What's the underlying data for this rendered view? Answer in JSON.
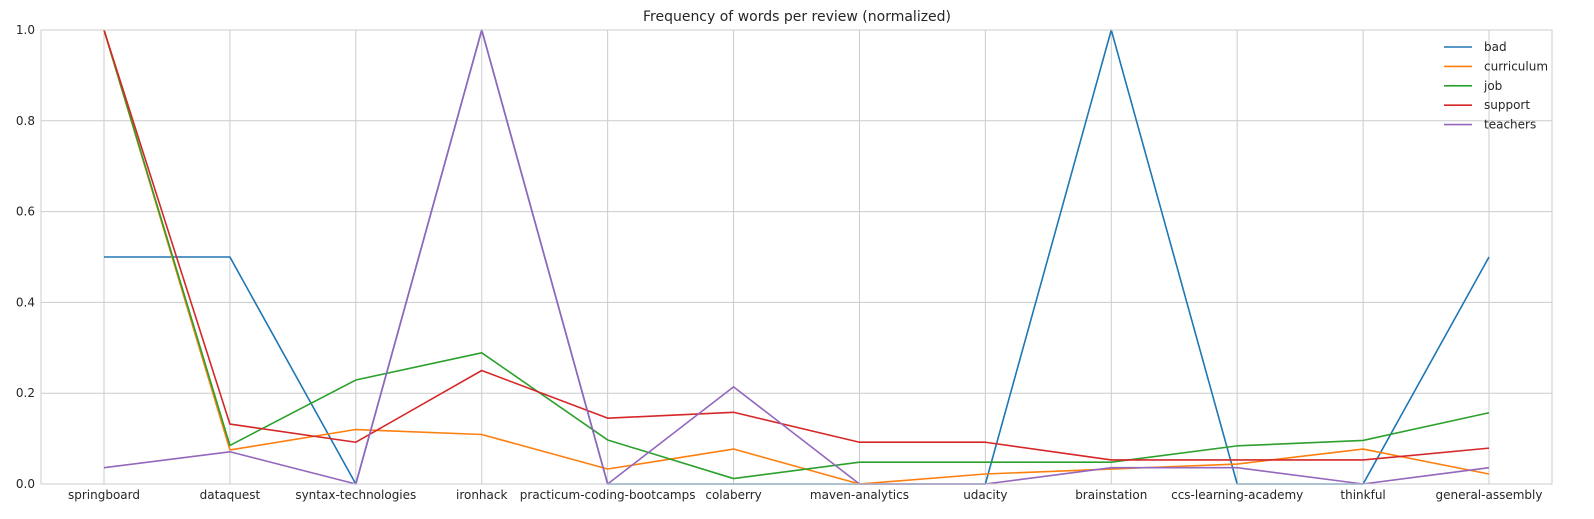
{
  "chart_data": {
    "type": "line",
    "title": "Frequency of words per review (normalized)",
    "xlabel": "",
    "ylabel": "",
    "categories": [
      "springboard",
      "dataquest",
      "syntax-technologies",
      "ironhack",
      "practicum-coding-bootcamps",
      "colaberry",
      "maven-analytics",
      "udacity",
      "brainstation",
      "ccs-learning-academy",
      "thinkful",
      "general-assembly"
    ],
    "ylim": [
      0,
      1
    ],
    "yticks": [
      "0.0",
      "0.2",
      "0.4",
      "0.6",
      "0.8",
      "1.0"
    ],
    "grid": true,
    "legend_position": "top-right",
    "series": [
      {
        "name": "bad",
        "color": "#1f77b4",
        "values": [
          0.5,
          0.5,
          0.0,
          1.0,
          0.0,
          0.0,
          0.0,
          0.0,
          1.0,
          0.0,
          0.0,
          0.5
        ]
      },
      {
        "name": "curriculum",
        "color": "#ff7f0e",
        "values": [
          1.0,
          0.075,
          0.12,
          0.109,
          0.033,
          0.077,
          0.0,
          0.022,
          0.033,
          0.044,
          0.077,
          0.022
        ]
      },
      {
        "name": "job",
        "color": "#2ca02c",
        "values": [
          1.0,
          0.085,
          0.229,
          0.289,
          0.097,
          0.012,
          0.048,
          0.048,
          0.048,
          0.084,
          0.096,
          0.157
        ]
      },
      {
        "name": "support",
        "color": "#d62728",
        "values": [
          1.0,
          0.132,
          0.092,
          0.25,
          0.145,
          0.158,
          0.092,
          0.092,
          0.053,
          0.053,
          0.053,
          0.079
        ]
      },
      {
        "name": "teachers",
        "color": "#9467bd",
        "values": [
          0.036,
          0.071,
          0.0,
          1.0,
          0.0,
          0.214,
          0.0,
          0.0,
          0.036,
          0.036,
          0.0,
          0.036
        ]
      }
    ]
  }
}
